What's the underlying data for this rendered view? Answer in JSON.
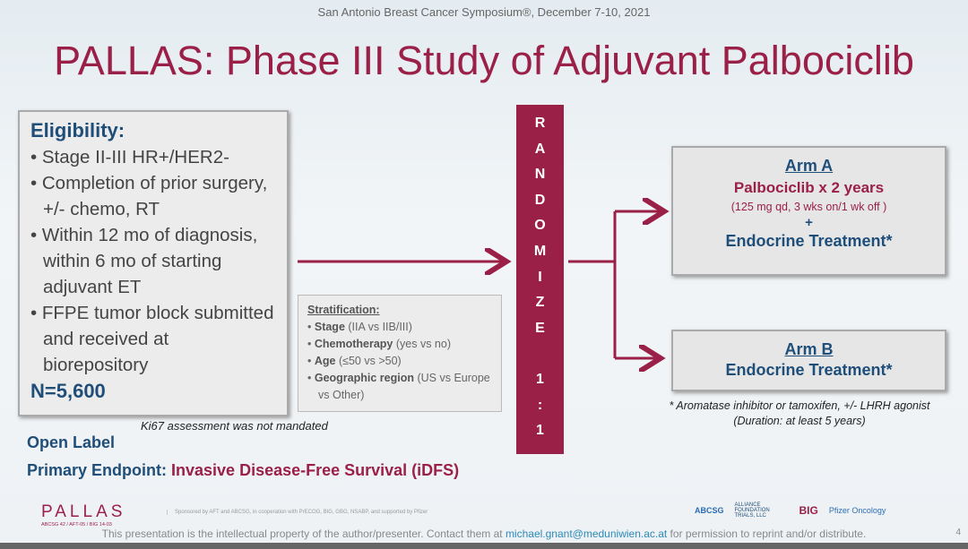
{
  "header": {
    "conference": "San Antonio Breast Cancer Symposium®, December 7-10, 2021",
    "title": "PALLAS: Phase III Study of Adjuvant Palbociclib"
  },
  "eligibility": {
    "heading": "Eligibility:",
    "items": [
      "• Stage II-III HR+/HER2-",
      "• Completion of prior surgery, +/- chemo, RT",
      "• Within 12 mo of diagnosis, within 6 mo of starting adjuvant ET",
      "• FFPE tumor block submitted and received at biorepository"
    ],
    "n": "N=5,600"
  },
  "ki67_note": "Ki67 assessment was not mandated",
  "open_label": "Open Label",
  "primary_endpoint": {
    "label": "Primary Endpoint: ",
    "value": "Invasive Disease-Free Survival (iDFS)"
  },
  "stratification": {
    "heading": "Stratification:",
    "items": [
      {
        "bold": "Stage",
        "rest": " (IIA vs IIB/III)"
      },
      {
        "bold": "Chemotherapy",
        "rest": " (yes vs no)"
      },
      {
        "bold": "Age",
        "rest": " (≤50 vs >50)"
      },
      {
        "bold": "Geographic region",
        "rest": " (US vs Europe vs Other)"
      }
    ]
  },
  "randomize": [
    "R",
    "A",
    "N",
    "D",
    "O",
    "M",
    "I",
    "Z",
    "E",
    "",
    "1",
    ":",
    "1"
  ],
  "arm_a": {
    "title": "Arm A",
    "drug": "Palbociclib x 2 years",
    "schedule": "(125 mg qd, 3 wks on/1 wk off )",
    "plus": "+",
    "endocrine": "Endocrine Treatment*"
  },
  "arm_b": {
    "title": "Arm B",
    "endocrine": "Endocrine Treatment*"
  },
  "footnote": [
    "* Aromatase inhibitor or tamoxifen, +/- LHRH agonist",
    "(Duration: at least 5 years)"
  ],
  "footer": {
    "logo": "PALLAS",
    "logo_sub": "ABCSG 42 / AFT-05 / BIG 14-03",
    "sponsors": "Sponsored by AFT and ABCSG, in cooperation with PrECOG, BIG, GBG, NSABP, and supported by Pfizer",
    "partner_logos": [
      "ABCSG",
      "ALLIANCE FOUNDATION TRIALS, LLC",
      "BIG",
      "Pfizer Oncology"
    ],
    "copyright_pre": "This presentation is the intellectual property of the author/presenter. Contact them at ",
    "email": "michael.gnant@meduniwien.ac.at",
    "copyright_post": " for permission to reprint and/or distribute.",
    "page": "4"
  },
  "colors": {
    "accent": "#9b2048",
    "navy": "#1f4e79"
  }
}
